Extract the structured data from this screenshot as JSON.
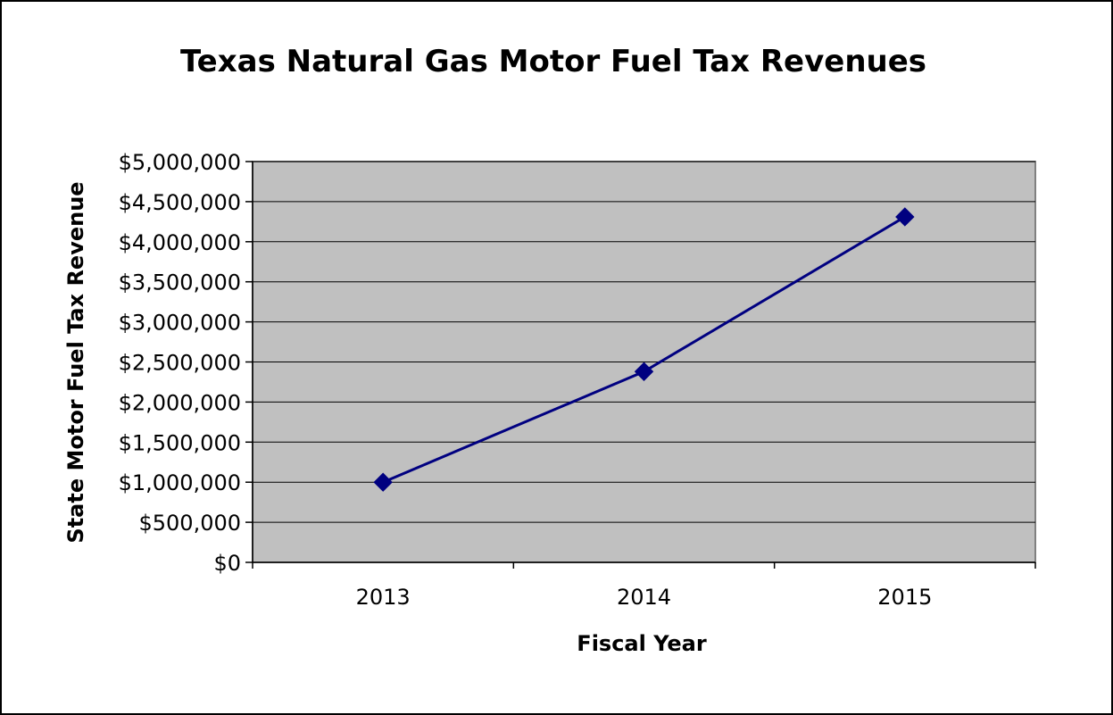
{
  "chart_data": {
    "type": "line",
    "title": "Texas Natural Gas Motor Fuel Tax Revenues",
    "xlabel": "Fiscal Year",
    "ylabel": "State Motor Fuel Tax Revenue",
    "categories": [
      "2013",
      "2014",
      "2015"
    ],
    "series": [
      {
        "values": [
          1000000,
          2380000,
          4310000
        ]
      }
    ],
    "ylim": [
      0,
      5000000
    ],
    "y_ticks": [
      0,
      500000,
      1000000,
      1500000,
      2000000,
      2500000,
      3000000,
      3500000,
      4000000,
      4500000,
      5000000
    ],
    "y_tick_labels": [
      "$0",
      "$500,000",
      "$1,000,000",
      "$1,500,000",
      "$2,000,000",
      "$2,500,000",
      "$3,000,000",
      "$3,500,000",
      "$4,000,000",
      "$4,500,000",
      "$5,000,000"
    ],
    "grid": true,
    "legend": "none",
    "colors": {
      "plot_background": "#C0C0C0",
      "series_line": "#000080",
      "gridline": "#000000"
    },
    "marker": "diamond"
  }
}
